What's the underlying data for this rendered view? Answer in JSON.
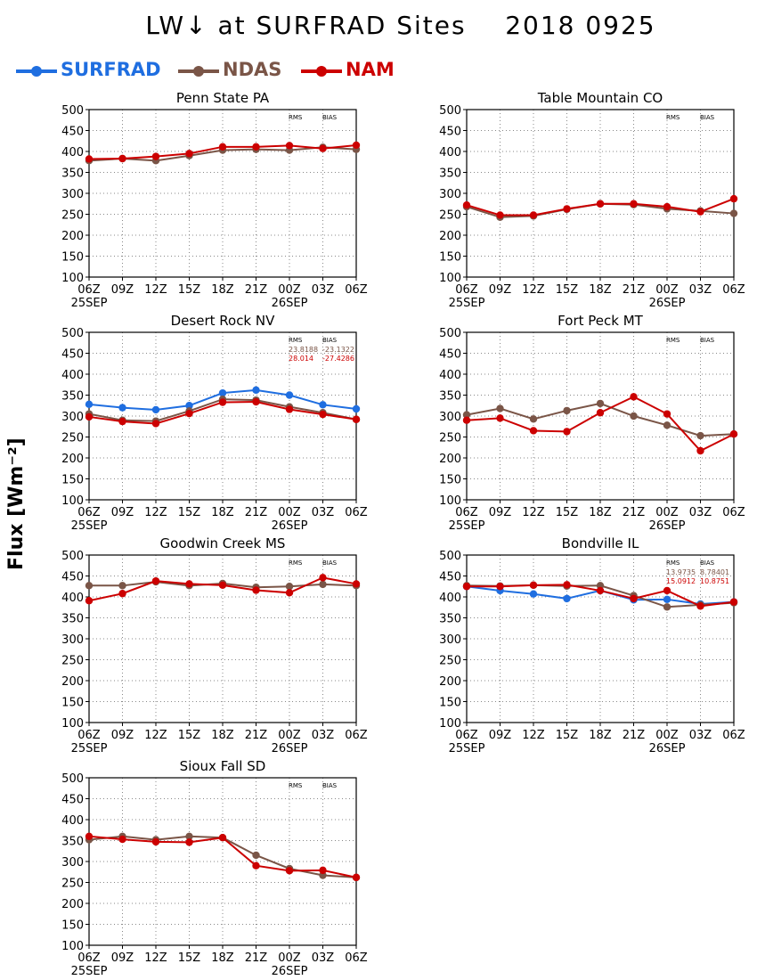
{
  "header": {
    "title": "LW↓ at SURFRAD Sites    2018 0925"
  },
  "legend": [
    {
      "name": "SURFRAD",
      "color": "#1f6ee0"
    },
    {
      "name": "NDAS",
      "color": "#7a5547"
    },
    {
      "name": "NAM",
      "color": "#cc0000"
    }
  ],
  "y_axis_label": "Flux [Wm⁻²]",
  "colors": {
    "SURFRAD": "#1f6ee0",
    "NDAS": "#7a5547",
    "NAM": "#cc0000"
  },
  "chart_data": [
    {
      "type": "line",
      "title": "Penn State PA",
      "categories": [
        "06Z",
        "09Z",
        "12Z",
        "15Z",
        "18Z",
        "21Z",
        "00Z",
        "03Z",
        "06Z"
      ],
      "date_labels": [
        "25SEP",
        "26SEP"
      ],
      "ylim": [
        100,
        500
      ],
      "yticks": [
        100,
        150,
        200,
        250,
        300,
        350,
        400,
        450,
        500
      ],
      "grid": true,
      "stats": {
        "headers": [
          "RMS",
          "BIAS"
        ],
        "rows": []
      },
      "series": [
        {
          "name": "SURFRAD",
          "values": [
            null,
            null,
            null,
            null,
            null,
            null,
            null,
            null,
            null
          ]
        },
        {
          "name": "NDAS",
          "values": [
            378,
            383,
            378,
            390,
            403,
            405,
            403,
            410,
            405
          ]
        },
        {
          "name": "NAM",
          "values": [
            382,
            383,
            388,
            395,
            411,
            411,
            414,
            407,
            415
          ]
        }
      ]
    },
    {
      "type": "line",
      "title": "Table Mountain CO",
      "categories": [
        "06Z",
        "09Z",
        "12Z",
        "15Z",
        "18Z",
        "21Z",
        "00Z",
        "03Z",
        "06Z"
      ],
      "date_labels": [
        "25SEP",
        "26SEP"
      ],
      "ylim": [
        100,
        500
      ],
      "yticks": [
        100,
        150,
        200,
        250,
        300,
        350,
        400,
        450,
        500
      ],
      "grid": true,
      "stats": {
        "headers": [
          "RMS",
          "BIAS"
        ],
        "rows": []
      },
      "series": [
        {
          "name": "SURFRAD",
          "values": [
            null,
            null,
            null,
            null,
            null,
            null,
            null,
            null,
            null
          ]
        },
        {
          "name": "NDAS",
          "values": [
            268,
            243,
            246,
            262,
            275,
            273,
            263,
            258,
            252
          ]
        },
        {
          "name": "NAM",
          "values": [
            272,
            248,
            248,
            263,
            275,
            275,
            268,
            256,
            287
          ]
        }
      ]
    },
    {
      "type": "line",
      "title": "Desert Rock NV",
      "categories": [
        "06Z",
        "09Z",
        "12Z",
        "15Z",
        "18Z",
        "21Z",
        "00Z",
        "03Z",
        "06Z"
      ],
      "date_labels": [
        "25SEP",
        "26SEP"
      ],
      "ylim": [
        100,
        500
      ],
      "yticks": [
        100,
        150,
        200,
        250,
        300,
        350,
        400,
        450,
        500
      ],
      "grid": true,
      "stats": {
        "headers": [
          "RMS",
          "BIAS"
        ],
        "rows": [
          {
            "series": "NDAS",
            "rms": "23.8188",
            "bias": "-23.1322"
          },
          {
            "series": "NAM",
            "rms": "28.014",
            "bias": "-27.4286"
          }
        ]
      },
      "series": [
        {
          "name": "SURFRAD",
          "values": [
            328,
            320,
            315,
            325,
            355,
            362,
            350,
            327,
            317
          ]
        },
        {
          "name": "NDAS",
          "values": [
            305,
            290,
            288,
            312,
            340,
            338,
            322,
            308,
            292
          ]
        },
        {
          "name": "NAM",
          "values": [
            298,
            287,
            282,
            306,
            333,
            334,
            316,
            304,
            292
          ]
        }
      ]
    },
    {
      "type": "line",
      "title": "Fort Peck MT",
      "categories": [
        "06Z",
        "09Z",
        "12Z",
        "15Z",
        "18Z",
        "21Z",
        "00Z",
        "03Z",
        "06Z"
      ],
      "date_labels": [
        "25SEP",
        "26SEP"
      ],
      "ylim": [
        100,
        500
      ],
      "yticks": [
        100,
        150,
        200,
        250,
        300,
        350,
        400,
        450,
        500
      ],
      "grid": true,
      "stats": {
        "headers": [
          "RMS",
          "BIAS"
        ],
        "rows": []
      },
      "series": [
        {
          "name": "SURFRAD",
          "values": [
            null,
            null,
            null,
            null,
            null,
            null,
            null,
            null,
            null
          ]
        },
        {
          "name": "NDAS",
          "values": [
            303,
            318,
            293,
            313,
            330,
            300,
            278,
            253,
            257
          ]
        },
        {
          "name": "NAM",
          "values": [
            290,
            295,
            265,
            263,
            308,
            346,
            305,
            217,
            257
          ]
        }
      ]
    },
    {
      "type": "line",
      "title": "Goodwin Creek MS",
      "categories": [
        "06Z",
        "09Z",
        "12Z",
        "15Z",
        "18Z",
        "21Z",
        "00Z",
        "03Z",
        "06Z"
      ],
      "date_labels": [
        "25SEP",
        "26SEP"
      ],
      "ylim": [
        100,
        500
      ],
      "yticks": [
        100,
        150,
        200,
        250,
        300,
        350,
        400,
        450,
        500
      ],
      "grid": true,
      "stats": {
        "headers": [
          "RMS",
          "BIAS"
        ],
        "rows": []
      },
      "series": [
        {
          "name": "SURFRAD",
          "values": [
            null,
            null,
            null,
            null,
            null,
            null,
            null,
            null,
            null
          ]
        },
        {
          "name": "NDAS",
          "values": [
            427,
            427,
            436,
            427,
            432,
            423,
            425,
            430,
            427
          ]
        },
        {
          "name": "NAM",
          "values": [
            391,
            408,
            438,
            431,
            428,
            416,
            410,
            446,
            431
          ]
        }
      ]
    },
    {
      "type": "line",
      "title": "Bondville IL",
      "categories": [
        "06Z",
        "09Z",
        "12Z",
        "15Z",
        "18Z",
        "21Z",
        "00Z",
        "03Z",
        "06Z"
      ],
      "date_labels": [
        "25SEP",
        "26SEP"
      ],
      "ylim": [
        100,
        500
      ],
      "yticks": [
        100,
        150,
        200,
        250,
        300,
        350,
        400,
        450,
        500
      ],
      "grid": true,
      "stats": {
        "headers": [
          "RMS",
          "BIAS"
        ],
        "rows": [
          {
            "series": "NDAS",
            "rms": "13.9735",
            "bias": "8.78401"
          },
          {
            "series": "NAM",
            "rms": "15.0912",
            "bias": "10.8751"
          }
        ]
      },
      "series": [
        {
          "name": "SURFRAD",
          "values": [
            425,
            415,
            407,
            396,
            415,
            393,
            394,
            383,
            388
          ]
        },
        {
          "name": "NDAS",
          "values": [
            427,
            426,
            428,
            426,
            427,
            403,
            376,
            381,
            386
          ]
        },
        {
          "name": "NAM",
          "values": [
            425,
            425,
            428,
            429,
            415,
            396,
            415,
            378,
            388
          ]
        }
      ]
    },
    {
      "type": "line",
      "title": "Sioux Fall SD",
      "categories": [
        "06Z",
        "09Z",
        "12Z",
        "15Z",
        "18Z",
        "21Z",
        "00Z",
        "03Z",
        "06Z"
      ],
      "date_labels": [
        "25SEP",
        "26SEP"
      ],
      "ylim": [
        100,
        500
      ],
      "yticks": [
        100,
        150,
        200,
        250,
        300,
        350,
        400,
        450,
        500
      ],
      "grid": true,
      "stats": {
        "headers": [
          "RMS",
          "BIAS"
        ],
        "rows": []
      },
      "series": [
        {
          "name": "SURFRAD",
          "values": [
            null,
            null,
            null,
            null,
            null,
            null,
            null,
            null,
            null
          ]
        },
        {
          "name": "NDAS",
          "values": [
            352,
            360,
            352,
            360,
            357,
            315,
            283,
            267,
            262
          ]
        },
        {
          "name": "NAM",
          "values": [
            360,
            353,
            347,
            346,
            357,
            290,
            278,
            279,
            262
          ]
        }
      ]
    }
  ]
}
